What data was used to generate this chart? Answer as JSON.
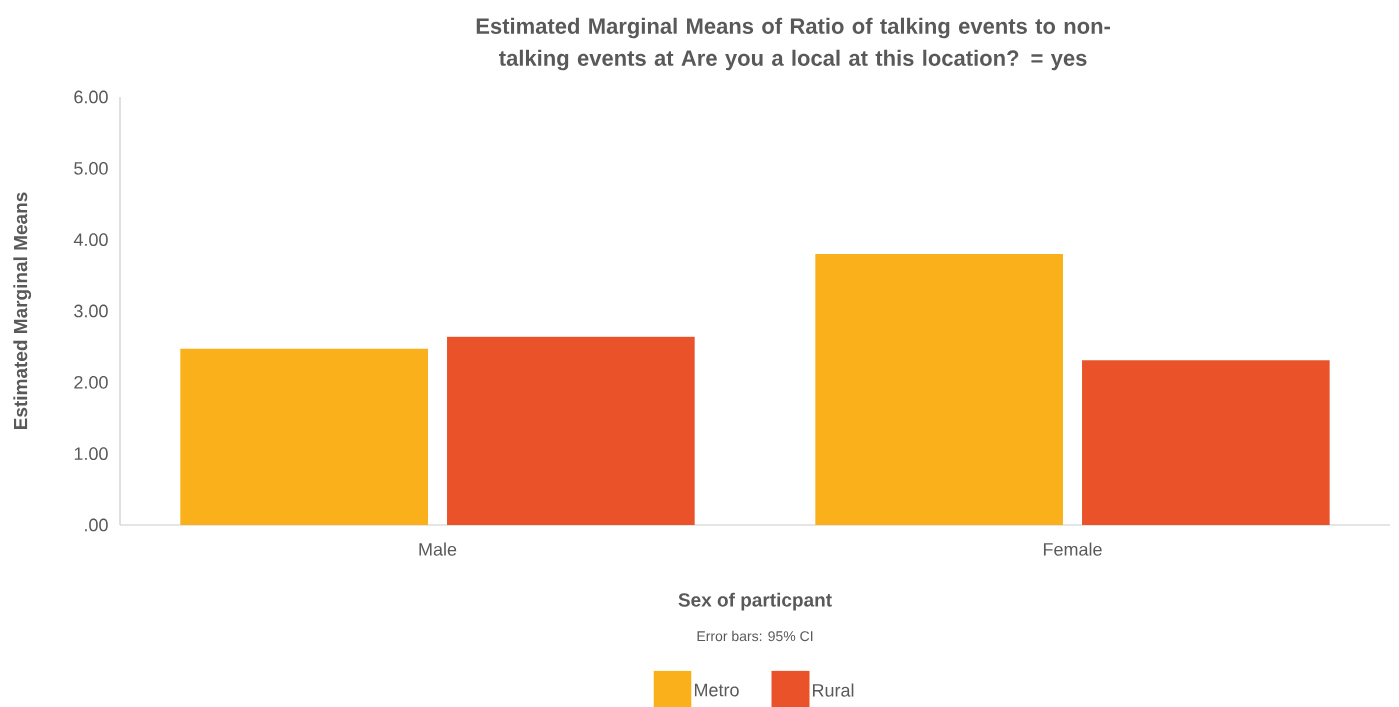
{
  "chart_data": {
    "type": "bar",
    "title": "Estimated Marginal Means of Ratio of talking events to non-talking events at Are you a local at this location? = yes",
    "xlabel": "Sex of particpant",
    "ylabel": "Estimated Marginal Means",
    "categories": [
      "Male",
      "Female"
    ],
    "series": [
      {
        "name": "Metro",
        "color": "#f9b01b",
        "values": [
          2.47,
          3.8
        ]
      },
      {
        "name": "Rural",
        "color": "#ea532a",
        "values": [
          2.64,
          2.31
        ]
      }
    ],
    "ylim": [
      0,
      6
    ],
    "yticks": [
      {
        "value": 0,
        "label": ".00"
      },
      {
        "value": 1,
        "label": "1.00"
      },
      {
        "value": 2,
        "label": "2.00"
      },
      {
        "value": 3,
        "label": "3.00"
      },
      {
        "value": 4,
        "label": "4.00"
      },
      {
        "value": 5,
        "label": "5.00"
      },
      {
        "value": 6,
        "label": "6.00"
      }
    ],
    "legend": "bottom",
    "annotations": [
      "Error bars: 95% CI"
    ]
  }
}
